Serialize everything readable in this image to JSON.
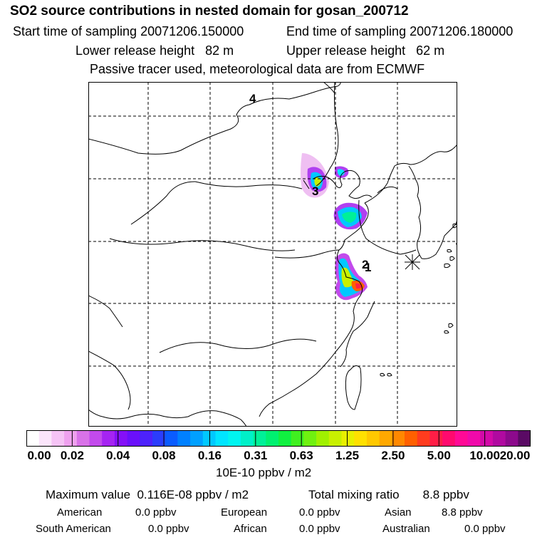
{
  "header": {
    "title": "SO2 source contributions in nested domain for gosan_200712",
    "start_time": "Start time of sampling 20071206.150000",
    "end_time": "End time of sampling 20071206.180000",
    "lower_release": "Lower release height   82 m",
    "upper_release": "Upper release height   62 m",
    "tracer_note": "Passive tracer used, meteorological data are from ECMWF"
  },
  "map": {
    "markers": [
      "4",
      "3",
      "2",
      "1"
    ],
    "receptor": "gosan (asterisk marker)"
  },
  "colorbar": {
    "tick_labels": [
      "0.00",
      "0.02",
      "0.04",
      "0.08",
      "0.16",
      "0.31",
      "0.63",
      "1.25",
      "2.50",
      "5.00",
      "10.00",
      "20.00"
    ],
    "colors": [
      "#ffffff",
      "#fbe5fb",
      "#f5c3f5",
      "#efa1ef",
      "#d872e8",
      "#c24aec",
      "#a524f2",
      "#8410f8",
      "#6a10fb",
      "#4d22fc",
      "#2b3dfc",
      "#0a5cff",
      "#0080ff",
      "#00a0ff",
      "#00c8ff",
      "#00e5ff",
      "#00f5f0",
      "#00f0c8",
      "#00f098",
      "#00f070",
      "#10f040",
      "#40f020",
      "#70f010",
      "#a0f000",
      "#c8f000",
      "#e8f000",
      "#ffe000",
      "#ffc800",
      "#ffa800",
      "#ff8800",
      "#ff6000",
      "#ff3c1e",
      "#ff1e46",
      "#ff0a6e",
      "#ff0a96",
      "#f00aaa",
      "#d20aa8",
      "#b00aa0",
      "#8c0a8c",
      "#5a0a64"
    ],
    "units": "10E-10 ppbv / m2"
  },
  "summary": {
    "max_value": "Maximum value  0.116E-08 ppbv / m2",
    "total_mixing": "Total mixing ratio       8.8 ppbv",
    "regions": [
      {
        "name": "American",
        "value": "0.0 ppbv"
      },
      {
        "name": "European",
        "value": "0.0 ppbv"
      },
      {
        "name": "Asian",
        "value": "8.8 ppbv"
      },
      {
        "name": "South American",
        "value": "0.0 ppbv"
      },
      {
        "name": "African",
        "value": "0.0 ppbv"
      },
      {
        "name": "Australian",
        "value": "0.0 ppbv"
      }
    ]
  }
}
